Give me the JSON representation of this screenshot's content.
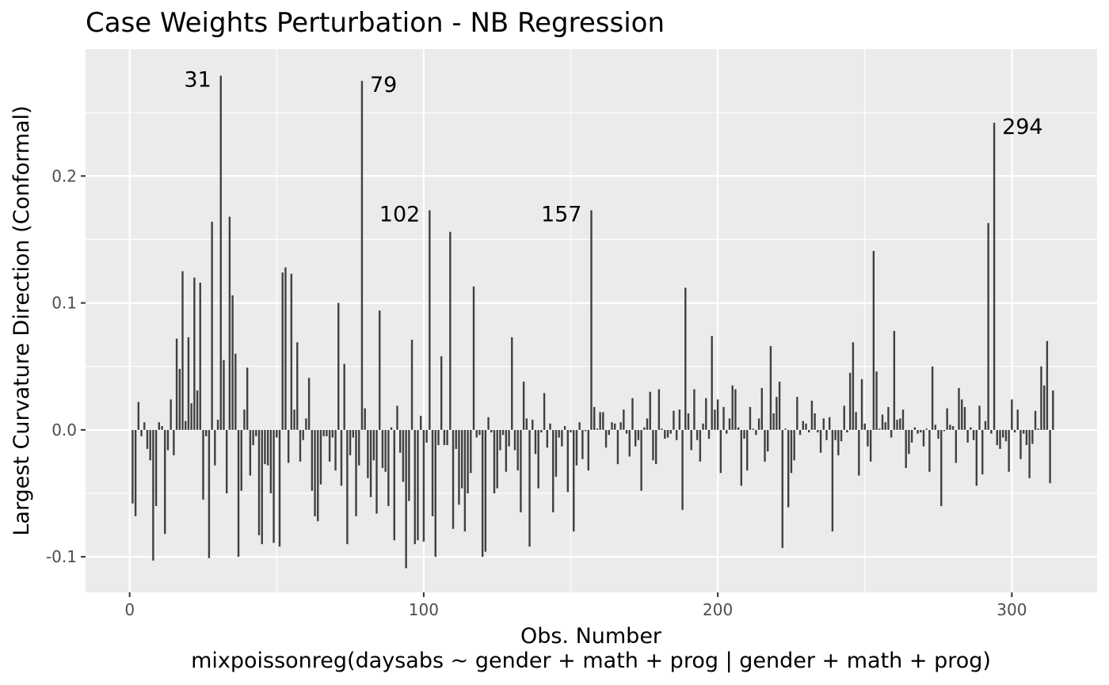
{
  "chart_data": {
    "type": "bar",
    "title": "Case Weights Perturbation - NB Regression",
    "xlabel": "Obs. Number",
    "xlabel2": "mixpoissonreg(daysabs ~ gender + math + prog | gender + math + prog)",
    "ylabel": "Largest Curvature Direction (Conformal)",
    "xlim": [
      -15,
      329
    ],
    "ylim": [
      -0.128,
      0.3
    ],
    "xticks": [
      0,
      100,
      200,
      300
    ],
    "xtick_labels": [
      "0",
      "100",
      "200",
      "300"
    ],
    "yticks": [
      -0.1,
      0.0,
      0.1,
      0.2
    ],
    "ytick_labels": [
      "-0.1",
      "0.0",
      "0.1",
      "0.2"
    ],
    "grid": true,
    "bar_color": "#404040",
    "panel_background": "#ebebeb",
    "x": [
      1,
      2,
      3,
      4,
      5,
      6,
      7,
      8,
      9,
      10,
      11,
      12,
      13,
      14,
      15,
      16,
      17,
      18,
      19,
      20,
      21,
      22,
      23,
      24,
      25,
      26,
      27,
      28,
      29,
      30,
      31,
      32,
      33,
      34,
      35,
      36,
      37,
      38,
      39,
      40,
      41,
      42,
      43,
      44,
      45,
      46,
      47,
      48,
      49,
      50,
      51,
      52,
      53,
      54,
      55,
      56,
      57,
      58,
      59,
      60,
      61,
      62,
      63,
      64,
      65,
      66,
      67,
      68,
      69,
      70,
      71,
      72,
      73,
      74,
      75,
      76,
      77,
      78,
      79,
      80,
      81,
      82,
      83,
      84,
      85,
      86,
      87,
      88,
      89,
      90,
      91,
      92,
      93,
      94,
      95,
      96,
      97,
      98,
      99,
      100,
      101,
      102,
      103,
      104,
      105,
      106,
      107,
      108,
      109,
      110,
      111,
      112,
      113,
      114,
      115,
      116,
      117,
      118,
      119,
      120,
      121,
      122,
      123,
      124,
      125,
      126,
      127,
      128,
      129,
      130,
      131,
      132,
      133,
      134,
      135,
      136,
      137,
      138,
      139,
      140,
      141,
      142,
      143,
      144,
      145,
      146,
      147,
      148,
      149,
      150,
      151,
      152,
      153,
      154,
      155,
      156,
      157,
      158,
      159,
      160,
      161,
      162,
      163,
      164,
      165,
      166,
      167,
      168,
      169,
      170,
      171,
      172,
      173,
      174,
      175,
      176,
      177,
      178,
      179,
      180,
      181,
      182,
      183,
      184,
      185,
      186,
      187,
      188,
      189,
      190,
      191,
      192,
      193,
      194,
      195,
      196,
      197,
      198,
      199,
      200,
      201,
      202,
      203,
      204,
      205,
      206,
      207,
      208,
      209,
      210,
      211,
      212,
      213,
      214,
      215,
      216,
      217,
      218,
      219,
      220,
      221,
      222,
      223,
      224,
      225,
      226,
      227,
      228,
      229,
      230,
      231,
      232,
      233,
      234,
      235,
      236,
      237,
      238,
      239,
      240,
      241,
      242,
      243,
      244,
      245,
      246,
      247,
      248,
      249,
      250,
      251,
      252,
      253,
      254,
      255,
      256,
      257,
      258,
      259,
      260,
      261,
      262,
      263,
      264,
      265,
      266,
      267,
      268,
      269,
      270,
      271,
      272,
      273,
      274,
      275,
      276,
      277,
      278,
      279,
      280,
      281,
      282,
      283,
      284,
      285,
      286,
      287,
      288,
      289,
      290,
      291,
      292,
      293,
      294,
      295,
      296,
      297,
      298,
      299,
      300,
      301,
      302,
      303,
      304,
      305,
      306,
      307,
      308,
      309,
      310,
      311,
      312,
      313,
      314
    ],
    "values": [
      -0.058,
      -0.068,
      0.022,
      -0.005,
      0.006,
      -0.015,
      -0.024,
      -0.103,
      -0.06,
      0.006,
      0.003,
      -0.082,
      -0.016,
      0.024,
      -0.02,
      0.072,
      0.048,
      0.125,
      0.007,
      0.073,
      0.021,
      0.12,
      0.031,
      0.116,
      -0.055,
      -0.005,
      -0.101,
      0.164,
      -0.028,
      0.008,
      0.279,
      0.055,
      -0.05,
      0.168,
      0.106,
      0.06,
      -0.1,
      -0.048,
      0.016,
      0.049,
      -0.036,
      -0.012,
      -0.005,
      -0.083,
      -0.09,
      -0.027,
      -0.028,
      -0.05,
      -0.089,
      -0.006,
      -0.092,
      0.124,
      0.128,
      -0.026,
      0.123,
      0.016,
      0.069,
      -0.025,
      -0.008,
      0.009,
      0.041,
      -0.048,
      -0.068,
      -0.072,
      -0.043,
      -0.005,
      -0.005,
      -0.025,
      -0.006,
      -0.032,
      0.1,
      -0.044,
      0.052,
      -0.09,
      -0.02,
      -0.006,
      -0.068,
      -0.028,
      0.275,
      0.017,
      -0.038,
      -0.053,
      -0.024,
      -0.066,
      0.094,
      -0.03,
      -0.033,
      -0.06,
      0.002,
      -0.087,
      0.019,
      -0.018,
      -0.041,
      -0.109,
      -0.056,
      0.071,
      -0.09,
      -0.087,
      0.011,
      -0.088,
      -0.01,
      0.173,
      -0.068,
      -0.1,
      -0.012,
      0.058,
      -0.012,
      -0.012,
      0.156,
      -0.078,
      -0.015,
      -0.059,
      -0.046,
      -0.08,
      -0.05,
      -0.034,
      0.113,
      -0.006,
      -0.004,
      -0.1,
      -0.096,
      0.01,
      -0.002,
      -0.05,
      -0.046,
      -0.016,
      -0.004,
      -0.033,
      -0.013,
      0.073,
      -0.016,
      -0.032,
      -0.065,
      0.038,
      0.009,
      -0.092,
      0.008,
      -0.019,
      -0.046,
      -0.002,
      0.029,
      -0.014,
      0.005,
      -0.065,
      -0.037,
      -0.006,
      -0.013,
      0.003,
      -0.049,
      -0.002,
      -0.08,
      -0.028,
      0.006,
      -0.023,
      -0.001,
      -0.032,
      0.173,
      0.018,
      0.001,
      0.014,
      0.014,
      -0.014,
      -0.004,
      0.006,
      0.005,
      -0.027,
      0.006,
      0.016,
      -0.003,
      -0.021,
      0.025,
      -0.013,
      -0.008,
      -0.048,
      0.002,
      0.009,
      0.03,
      -0.024,
      -0.027,
      0.032,
      0.001,
      -0.007,
      -0.006,
      -0.003,
      0.015,
      -0.008,
      0.016,
      -0.063,
      0.112,
      0.013,
      -0.016,
      0.032,
      -0.008,
      -0.025,
      0.005,
      0.025,
      -0.007,
      0.074,
      0.016,
      0.024,
      -0.034,
      0.018,
      -0.003,
      0.009,
      0.035,
      0.032,
      0.002,
      -0.044,
      -0.007,
      -0.032,
      0.018,
      0.001,
      -0.004,
      0.009,
      0.033,
      -0.025,
      -0.017,
      0.066,
      0.013,
      0.026,
      0.038,
      -0.093,
      0.001,
      -0.061,
      -0.034,
      -0.024,
      0.026,
      -0.004,
      0.007,
      0.005,
      -0.002,
      0.023,
      0.013,
      -0.002,
      -0.018,
      0.009,
      -0.008,
      0.01,
      -0.08,
      -0.008,
      -0.02,
      -0.009,
      0.019,
      -0.002,
      0.045,
      0.069,
      0.014,
      -0.036,
      0.04,
      0.005,
      -0.013,
      -0.025,
      0.141,
      0.046,
      0.001,
      0.012,
      0.006,
      0.018,
      -0.006,
      0.078,
      0.008,
      0.009,
      0.016,
      -0.03,
      -0.019,
      -0.01,
      0.002,
      -0.003,
      -0.002,
      -0.013,
      0.001,
      -0.033,
      0.05,
      0.004,
      -0.007,
      -0.06,
      -0.001,
      0.017,
      0.004,
      0.003,
      -0.026,
      0.033,
      0.024,
      0.018,
      -0.01,
      0.002,
      -0.008,
      -0.044,
      0.019,
      -0.035,
      0.007,
      0.163,
      -0.003,
      0.242,
      -0.012,
      -0.015,
      -0.006,
      -0.009,
      -0.033,
      0.024,
      -0.002,
      0.016,
      -0.023,
      -0.003,
      -0.012,
      -0.038,
      -0.011,
      0.015,
      0.001,
      0.05,
      0.035,
      0.07,
      -0.042,
      0.031
    ],
    "annotations": [
      {
        "label": "31",
        "x": 31,
        "y": 0.279,
        "align": "end"
      },
      {
        "label": "79",
        "x": 79,
        "y": 0.275,
        "align": "start"
      },
      {
        "label": "102",
        "x": 102,
        "y": 0.173,
        "align": "end"
      },
      {
        "label": "157",
        "x": 157,
        "y": 0.173,
        "align": "end"
      },
      {
        "label": "294",
        "x": 294,
        "y": 0.242,
        "align": "start"
      }
    ]
  }
}
